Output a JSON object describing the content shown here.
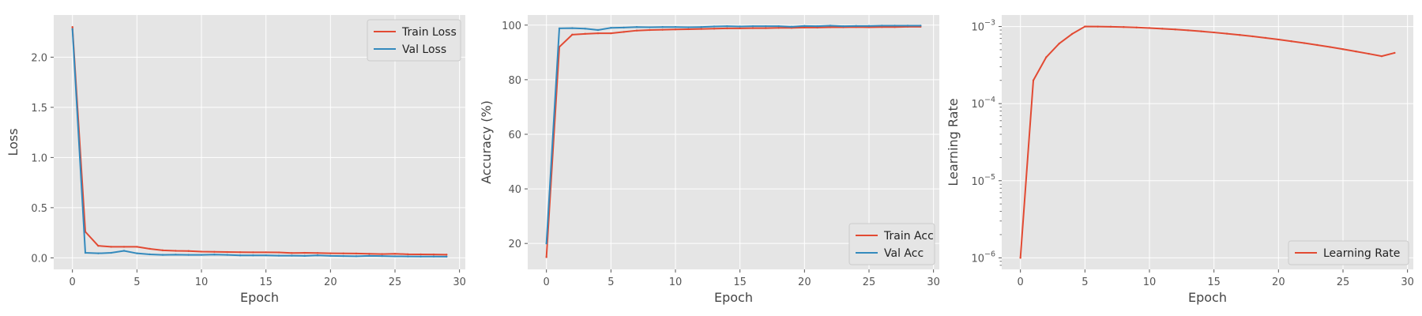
{
  "chart_data": [
    {
      "type": "line",
      "xlabel": "Epoch",
      "ylabel": "Loss",
      "xlim": [
        -1.45,
        30.45
      ],
      "ylim": [
        -0.115,
        2.42
      ],
      "x_ticks": [
        0,
        5,
        10,
        15,
        20,
        25,
        30
      ],
      "y_ticks": [
        0.0,
        0.5,
        1.0,
        1.5,
        2.0
      ],
      "y_tick_labels": [
        "0.0",
        "0.5",
        "1.0",
        "1.5",
        "2.0"
      ],
      "grid": true,
      "legend_position": "top-right",
      "x": [
        0,
        1,
        2,
        3,
        4,
        5,
        6,
        7,
        8,
        9,
        10,
        11,
        12,
        13,
        14,
        15,
        16,
        17,
        18,
        19,
        20,
        21,
        22,
        23,
        24,
        25,
        26,
        27,
        28,
        29
      ],
      "series": [
        {
          "name": "Train Loss",
          "color": "#E24A33",
          "values": [
            2.3,
            0.26,
            0.12,
            0.11,
            0.11,
            0.11,
            0.09,
            0.075,
            0.07,
            0.068,
            0.062,
            0.06,
            0.058,
            0.056,
            0.055,
            0.055,
            0.054,
            0.048,
            0.05,
            0.048,
            0.045,
            0.044,
            0.043,
            0.04,
            0.038,
            0.04,
            0.036,
            0.035,
            0.034,
            0.032
          ]
        },
        {
          "name": "Val Loss",
          "color": "#348ABD",
          "values": [
            2.28,
            0.05,
            0.045,
            0.05,
            0.07,
            0.045,
            0.035,
            0.03,
            0.032,
            0.03,
            0.03,
            0.033,
            0.03,
            0.025,
            0.025,
            0.025,
            0.022,
            0.022,
            0.02,
            0.025,
            0.02,
            0.018,
            0.016,
            0.02,
            0.018,
            0.015,
            0.014,
            0.013,
            0.013,
            0.012
          ]
        }
      ]
    },
    {
      "type": "line",
      "xlabel": "Epoch",
      "ylabel": "Accuracy (%)",
      "xlim": [
        -1.45,
        30.45
      ],
      "ylim": [
        10.5,
        103.7
      ],
      "x_ticks": [
        0,
        5,
        10,
        15,
        20,
        25,
        30
      ],
      "y_ticks": [
        20,
        40,
        60,
        80,
        100
      ],
      "y_tick_labels": [
        "20",
        "40",
        "60",
        "80",
        "100"
      ],
      "grid": true,
      "legend_position": "bottom-right",
      "x": [
        0,
        1,
        2,
        3,
        4,
        5,
        6,
        7,
        8,
        9,
        10,
        11,
        12,
        13,
        14,
        15,
        16,
        17,
        18,
        19,
        20,
        21,
        22,
        23,
        24,
        25,
        26,
        27,
        28,
        29
      ],
      "series": [
        {
          "name": "Train Acc",
          "color": "#E24A33",
          "values": [
            15,
            92,
            96.5,
            96.8,
            97,
            97,
            97.5,
            98,
            98.2,
            98.3,
            98.4,
            98.5,
            98.6,
            98.7,
            98.8,
            98.8,
            98.9,
            98.9,
            99,
            99,
            99.1,
            99.1,
            99.2,
            99.2,
            99.3,
            99.2,
            99.3,
            99.3,
            99.4,
            99.4
          ]
        },
        {
          "name": "Val Acc",
          "color": "#348ABD",
          "values": [
            20,
            98.8,
            98.9,
            98.7,
            98.2,
            99,
            99.1,
            99.3,
            99.2,
            99.3,
            99.3,
            99.2,
            99.3,
            99.5,
            99.6,
            99.5,
            99.6,
            99.6,
            99.6,
            99.4,
            99.7,
            99.6,
            99.8,
            99.6,
            99.7,
            99.7,
            99.8,
            99.8,
            99.8,
            99.8
          ]
        }
      ]
    },
    {
      "type": "line",
      "xlabel": "Epoch",
      "ylabel": "Learning Rate",
      "xlim": [
        -1.45,
        30.45
      ],
      "ylim": [
        7.08e-07,
        0.00141
      ],
      "y_scale": "log",
      "x_ticks": [
        0,
        5,
        10,
        15,
        20,
        25,
        30
      ],
      "y_ticks": [
        1e-06,
        1e-05,
        0.0001,
        0.001
      ],
      "y_tick_labels": [
        [
          "10",
          "−6"
        ],
        [
          "10",
          "−5"
        ],
        [
          "10",
          "−4"
        ],
        [
          "10",
          "−3"
        ]
      ],
      "grid": true,
      "legend_position": "bottom-right",
      "x": [
        0,
        1,
        2,
        3,
        4,
        5,
        6,
        7,
        8,
        9,
        10,
        11,
        12,
        13,
        14,
        15,
        16,
        17,
        18,
        19,
        20,
        21,
        22,
        23,
        24,
        25,
        26,
        27,
        28,
        29
      ],
      "series": [
        {
          "name": "Learning Rate",
          "color": "#E24A33",
          "values": [
            1e-06,
            0.0002,
            0.0004,
            0.0006,
            0.0008,
            0.001,
            0.000998,
            0.000993,
            0.000984,
            0.000971,
            0.000956,
            0.000937,
            0.000916,
            0.000892,
            0.000866,
            0.000838,
            0.000808,
            0.000777,
            0.000745,
            0.000712,
            0.000678,
            0.000644,
            0.00061,
            0.000576,
            0.000542,
            0.000508,
            0.000475,
            0.000443,
            0.000412,
            0.000455
          ]
        }
      ]
    }
  ]
}
